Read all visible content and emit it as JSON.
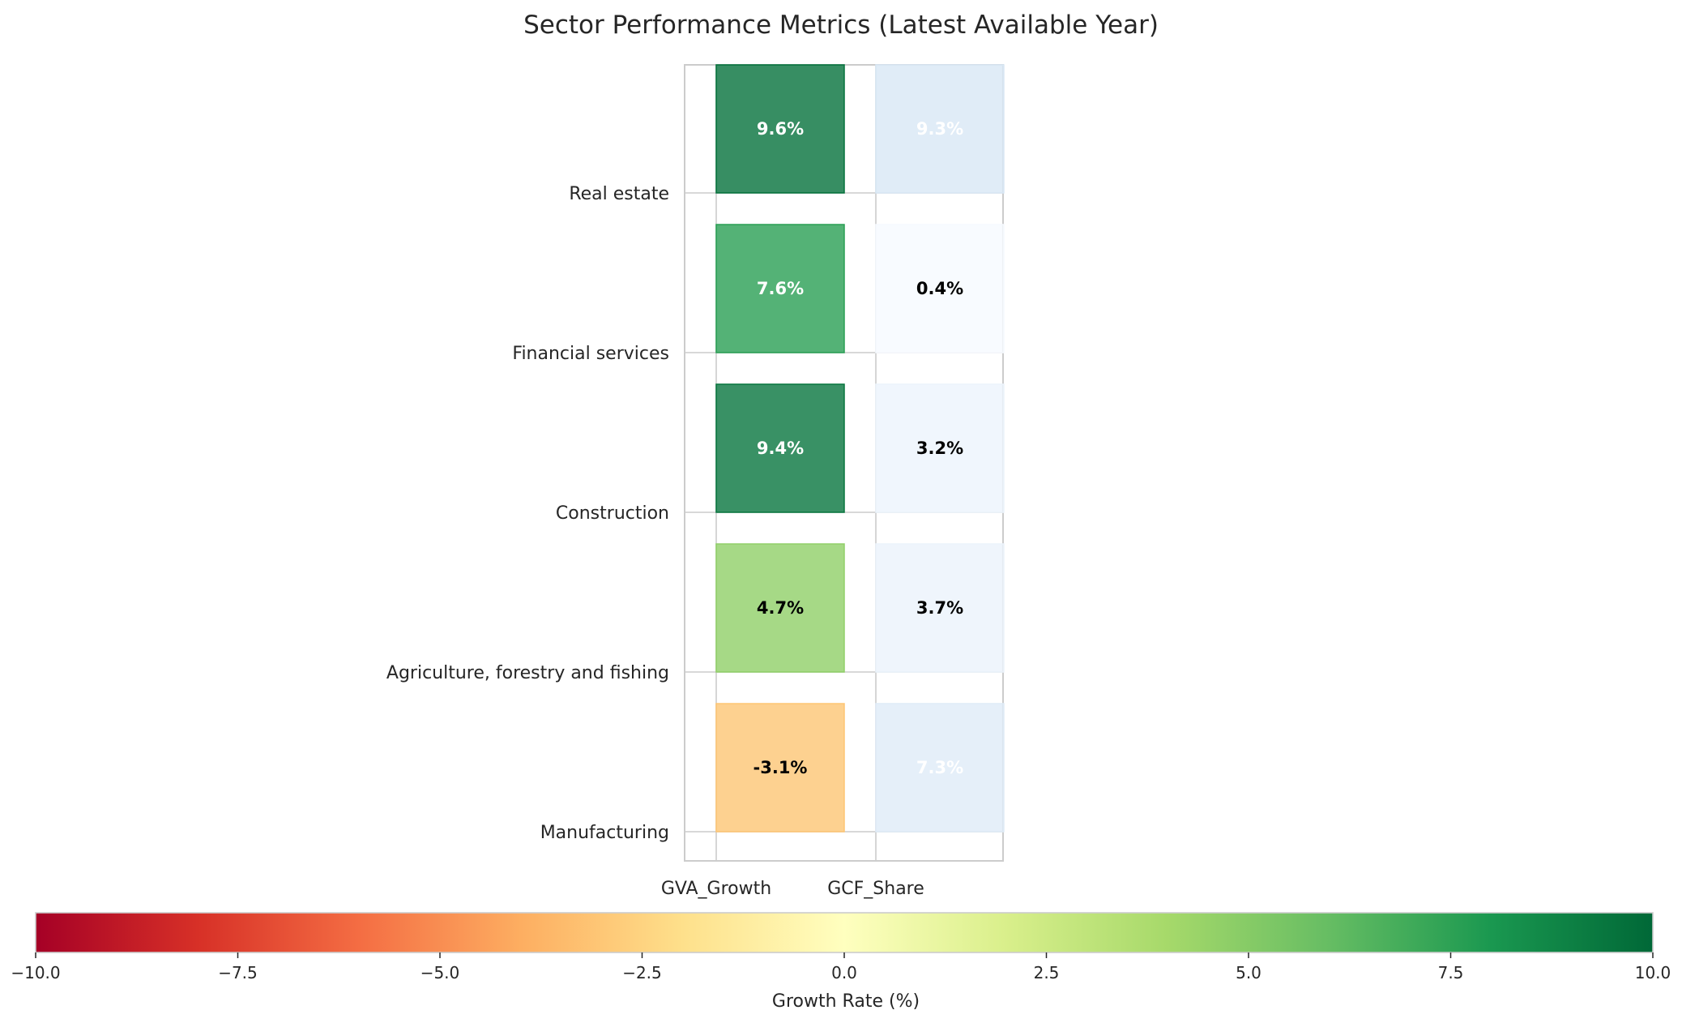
{
  "chart_data": {
    "type": "heatmap",
    "title": "Sector Performance Metrics (Latest Available Year)",
    "rows": [
      "Real estate",
      "Financial services",
      "Construction",
      "Agriculture, forestry and fishing",
      "Manufacturing"
    ],
    "columns": [
      "GVA_Growth",
      "GCF_Share"
    ],
    "values": [
      [
        9.6,
        9.3
      ],
      [
        7.6,
        0.4
      ],
      [
        9.4,
        3.2
      ],
      [
        4.7,
        3.7
      ],
      [
        -3.1,
        7.3
      ]
    ],
    "cell_labels": [
      [
        "9.6%",
        "9.3%"
      ],
      [
        "7.6%",
        "0.4%"
      ],
      [
        "9.4%",
        "3.2%"
      ],
      [
        "4.7%",
        "3.7%"
      ],
      [
        "-3.1%",
        "7.3%"
      ]
    ],
    "colormaps": {
      "GVA_Growth": "RdYlGn",
      "GCF_Share": "Blues"
    },
    "colorbar": {
      "label": "Growth Rate (%)",
      "range": [
        -10,
        10
      ],
      "ticks": [
        "−10.0",
        "−7.5",
        "−5.0",
        "−2.5",
        "0.0",
        "2.5",
        "5.0",
        "7.5",
        "10.0"
      ],
      "colormap": "RdYlGn"
    },
    "grid": true
  }
}
